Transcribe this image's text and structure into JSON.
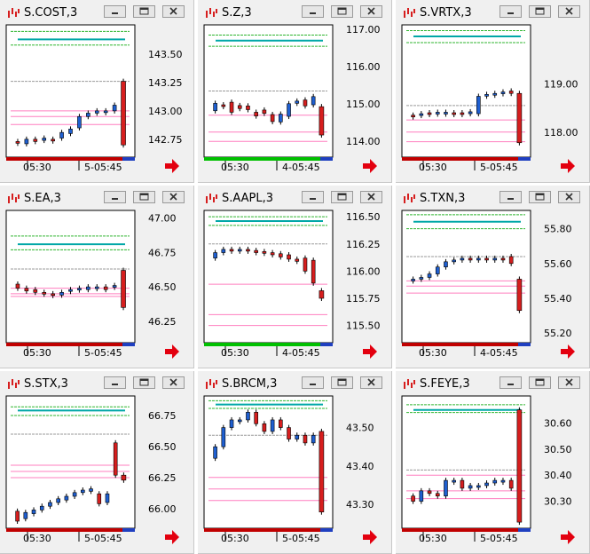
{
  "windows": [
    {
      "title": "S.COST,3",
      "time_left": "05:30",
      "time_right": "5-05:45",
      "price_labels": [
        "143.50",
        "143.25",
        "143.00",
        "142.75"
      ],
      "bottom_bar_color": "#c00000",
      "ymin": 142.6,
      "ymax": 143.75,
      "candles": [
        [
          142.73,
          142.72
        ],
        [
          142.71,
          142.75
        ],
        [
          142.75,
          142.73
        ],
        [
          142.74,
          142.76
        ],
        [
          142.75,
          142.74
        ],
        [
          142.76,
          142.81
        ],
        [
          142.8,
          142.84
        ],
        [
          142.85,
          142.95
        ],
        [
          142.95,
          142.98
        ],
        [
          142.98,
          143.0
        ],
        [
          142.99,
          143.0
        ],
        [
          143.0,
          143.05
        ],
        [
          143.26,
          142.7
        ]
      ],
      "green_lines": [
        143.7,
        143.58
      ],
      "teal_line": 143.63,
      "gray_lines": [
        143.26
      ],
      "pink_lines": [
        143.0,
        142.95,
        142.88
      ]
    },
    {
      "title": "S.Z,3",
      "time_left": "05:30",
      "time_right": "4-05:45",
      "price_labels": [
        "117.00",
        "116.00",
        "115.00",
        "114.00"
      ],
      "bottom_bar_color": "#00c000",
      "ymin": 113.6,
      "ymax": 117.1,
      "candles": [
        [
          114.82,
          115.02
        ],
        [
          114.98,
          114.94
        ],
        [
          115.05,
          114.78
        ],
        [
          114.96,
          114.88
        ],
        [
          114.95,
          114.85
        ],
        [
          114.78,
          114.68
        ],
        [
          114.84,
          114.75
        ],
        [
          114.72,
          114.53
        ],
        [
          114.52,
          114.73
        ],
        [
          114.67,
          115.01
        ],
        [
          115.02,
          115.08
        ],
        [
          115.11,
          114.95
        ],
        [
          114.98,
          115.2
        ],
        [
          114.93,
          114.17
        ]
      ],
      "green_lines": [
        116.85,
        116.55
      ],
      "teal_line": 116.7,
      "gray_lines": [
        115.35
      ],
      "pink_lines": [
        114.7,
        114.25,
        114.0
      ]
    },
    {
      "title": "S.VRTX,3",
      "time_left": "05:30",
      "time_right": "5-05:45",
      "price_labels": [
        "119.00",
        "118.00"
      ],
      "bottom_bar_color": "#c00000",
      "ymin": 117.5,
      "ymax": 120.2,
      "candles": [
        [
          118.35,
          118.33
        ],
        [
          118.36,
          118.38
        ],
        [
          118.4,
          118.38
        ],
        [
          118.38,
          118.41
        ],
        [
          118.39,
          118.41
        ],
        [
          118.4,
          118.38
        ],
        [
          118.4,
          118.38
        ],
        [
          118.38,
          118.42
        ],
        [
          118.38,
          118.74
        ],
        [
          118.76,
          118.78
        ],
        [
          118.78,
          118.8
        ],
        [
          118.8,
          118.83
        ],
        [
          118.85,
          118.8
        ],
        [
          118.8,
          117.78
        ]
      ],
      "green_lines": [
        120.1,
        119.85
      ],
      "teal_line": 119.98,
      "gray_lines": [
        118.55
      ],
      "pink_lines": [
        118.25,
        118.0,
        117.8
      ]
    },
    {
      "title": "S.EA,3",
      "time_left": "05:30",
      "time_right": "5-05:45",
      "price_labels": [
        "47.00",
        "46.75",
        "46.50",
        "46.25"
      ],
      "bottom_bar_color": "#c00000",
      "ymin": 46.1,
      "ymax": 47.05,
      "candles": [
        [
          46.52,
          46.49
        ],
        [
          46.49,
          46.47
        ],
        [
          46.48,
          46.46
        ],
        [
          46.46,
          46.45
        ],
        [
          46.45,
          46.44
        ],
        [
          46.44,
          46.46
        ],
        [
          46.47,
          46.48
        ],
        [
          46.48,
          46.49
        ],
        [
          46.48,
          46.5
        ],
        [
          46.49,
          46.5
        ],
        [
          46.5,
          46.48
        ],
        [
          46.5,
          46.51
        ],
        [
          46.62,
          46.35
        ]
      ],
      "green_lines": [
        46.87,
        46.77
      ],
      "teal_line": 46.81,
      "gray_lines": [
        46.63
      ],
      "pink_lines": [
        46.49,
        46.45,
        46.43
      ]
    },
    {
      "title": "S.AAPL,3",
      "time_left": "05:30",
      "time_right": "4-05:45",
      "price_labels": [
        "116.50",
        "116.25",
        "116.00",
        "115.75",
        "115.50"
      ],
      "bottom_bar_color": "#00c000",
      "ymin": 115.35,
      "ymax": 116.55,
      "candles": [
        [
          116.12,
          116.17
        ],
        [
          116.17,
          116.2
        ],
        [
          116.2,
          116.19
        ],
        [
          116.19,
          116.2
        ],
        [
          116.2,
          116.19
        ],
        [
          116.19,
          116.17
        ],
        [
          116.18,
          116.17
        ],
        [
          116.17,
          116.15
        ],
        [
          116.16,
          116.13
        ],
        [
          116.15,
          116.11
        ],
        [
          116.11,
          116.09
        ],
        [
          116.12,
          116.0
        ],
        [
          116.1,
          115.89
        ],
        [
          115.82,
          115.75
        ]
      ],
      "green_lines": [
        116.5,
        116.42
      ],
      "teal_line": 116.46,
      "gray_lines": [
        116.25
      ],
      "pink_lines": [
        115.88,
        115.6,
        115.5
      ]
    },
    {
      "title": "S.TXN,3",
      "time_left": "05:30",
      "time_right": "4-05:45",
      "price_labels": [
        "55.80",
        "55.60",
        "55.40",
        "55.20"
      ],
      "bottom_bar_color": "#c00000",
      "ymin": 55.15,
      "ymax": 55.9,
      "candles": [
        [
          55.5,
          55.51
        ],
        [
          55.51,
          55.52
        ],
        [
          55.52,
          55.54
        ],
        [
          55.54,
          55.58
        ],
        [
          55.58,
          55.61
        ],
        [
          55.61,
          55.62
        ],
        [
          55.62,
          55.63
        ],
        [
          55.63,
          55.62
        ],
        [
          55.62,
          55.63
        ],
        [
          55.63,
          55.62
        ],
        [
          55.62,
          55.63
        ],
        [
          55.63,
          55.62
        ],
        [
          55.64,
          55.6
        ],
        [
          55.51,
          55.33
        ]
      ],
      "green_lines": [
        55.88,
        55.8
      ],
      "teal_line": 55.84,
      "gray_lines": [
        55.64
      ],
      "pink_lines": [
        55.5,
        55.47,
        55.43
      ]
    },
    {
      "title": "S.STX,3",
      "time_left": "05:30",
      "time_right": "5-05:45",
      "price_labels": [
        "66.75",
        "66.50",
        "66.25",
        "66.00"
      ],
      "bottom_bar_color": "#c00000",
      "ymin": 65.85,
      "ymax": 66.9,
      "candles": [
        [
          65.98,
          65.9
        ],
        [
          65.92,
          65.97
        ],
        [
          65.96,
          65.99
        ],
        [
          65.99,
          66.02
        ],
        [
          66.02,
          66.05
        ],
        [
          66.05,
          66.08
        ],
        [
          66.07,
          66.1
        ],
        [
          66.1,
          66.13
        ],
        [
          66.13,
          66.15
        ],
        [
          66.14,
          66.16
        ],
        [
          66.12,
          66.04
        ],
        [
          66.05,
          66.12
        ],
        [
          66.53,
          66.27
        ],
        [
          66.27,
          66.23
        ]
      ],
      "green_lines": [
        66.82,
        66.75
      ],
      "teal_line": 66.79,
      "gray_lines": [
        66.6
      ],
      "pink_lines": [
        66.35,
        66.3,
        66.25
      ]
    },
    {
      "title": "S.BRCM,3",
      "time_left": "05:30",
      "time_right": "5-05:45",
      "price_labels": [
        "43.50",
        "43.40",
        "43.30"
      ],
      "bottom_bar_color": "#c00000",
      "ymin": 43.24,
      "ymax": 43.58,
      "candles": [
        [
          43.42,
          43.45
        ],
        [
          43.45,
          43.5
        ],
        [
          43.5,
          43.52
        ],
        [
          43.52,
          43.52
        ],
        [
          43.52,
          43.54
        ],
        [
          43.54,
          43.51
        ],
        [
          43.51,
          43.49
        ],
        [
          43.49,
          43.52
        ],
        [
          43.52,
          43.5
        ],
        [
          43.5,
          43.47
        ],
        [
          43.47,
          43.48
        ],
        [
          43.48,
          43.46
        ],
        [
          43.46,
          43.48
        ],
        [
          43.49,
          43.28
        ]
      ],
      "green_lines": [
        43.57,
        43.55
      ],
      "teal_line": 43.56,
      "gray_lines": [
        43.48
      ],
      "pink_lines": [
        43.37,
        43.34,
        43.31
      ]
    },
    {
      "title": "S.FEYE,3",
      "time_left": "05:30",
      "time_right": "5-05:45",
      "price_labels": [
        "30.60",
        "30.50",
        "30.40",
        "30.30"
      ],
      "bottom_bar_color": "#c00000",
      "ymin": 30.2,
      "ymax": 30.7,
      "candles": [
        [
          30.32,
          30.3
        ],
        [
          30.3,
          30.34
        ],
        [
          30.34,
          30.33
        ],
        [
          30.33,
          30.32
        ],
        [
          30.32,
          30.38
        ],
        [
          30.38,
          30.38
        ],
        [
          30.38,
          30.35
        ],
        [
          30.35,
          30.36
        ],
        [
          30.36,
          30.36
        ],
        [
          30.36,
          30.37
        ],
        [
          30.37,
          30.38
        ],
        [
          30.38,
          30.38
        ],
        [
          30.38,
          30.35
        ],
        [
          30.65,
          30.22
        ]
      ],
      "green_lines": [
        30.67,
        30.64
      ],
      "teal_line": 30.65,
      "gray_lines": [
        30.42
      ],
      "pink_lines": [
        30.4,
        30.34,
        30.31
      ]
    }
  ],
  "colors": {
    "green_line": "#2fb52f",
    "teal_line": "#00a7a7",
    "gray_line": "#9a9a9a",
    "pink_line": "#ff7fbf",
    "up_fill": "#1f5fd0",
    "down_fill": "#d61e1e",
    "bg": "#ffffff",
    "chart_border": "#000000",
    "accent_red": "#e3000f"
  }
}
